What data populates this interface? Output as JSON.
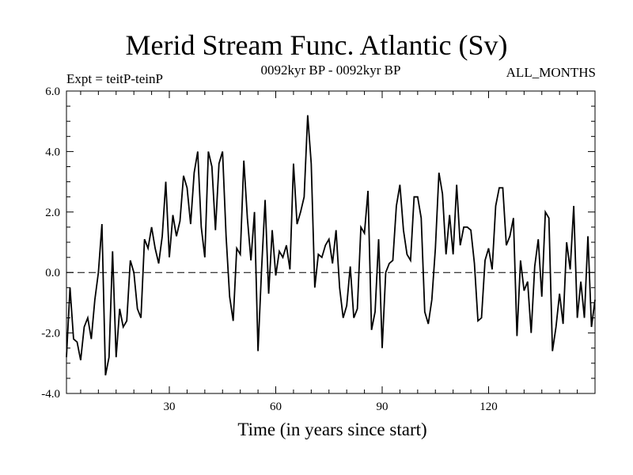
{
  "chart_data": {
    "type": "line",
    "title": "Merid Stream Func. Atlantic (Sv)",
    "subtitle_left": "Expt = teitP-teinP",
    "subtitle_center": "0092kyr BP - 0092kyr BP",
    "subtitle_right": "ALL_MONTHS",
    "xlabel": "Time (in years since start)",
    "ylabel": "",
    "xlim": [
      1,
      150
    ],
    "ylim": [
      -4.0,
      6.0
    ],
    "xticks": [
      30,
      60,
      90,
      120
    ],
    "yticks": [
      -4.0,
      -2.0,
      0.0,
      2.0,
      4.0,
      6.0
    ],
    "ytick_labels": [
      "-4.0",
      "-2.0",
      "0.0",
      "2.0",
      "4.0",
      "6.0"
    ],
    "reference_line": 0.0,
    "x": [
      1,
      2,
      3,
      4,
      5,
      6,
      7,
      8,
      9,
      10,
      11,
      12,
      13,
      14,
      15,
      16,
      17,
      18,
      19,
      20,
      21,
      22,
      23,
      24,
      25,
      26,
      27,
      28,
      29,
      30,
      31,
      32,
      33,
      34,
      35,
      36,
      37,
      38,
      39,
      40,
      41,
      42,
      43,
      44,
      45,
      46,
      47,
      48,
      49,
      50,
      51,
      52,
      53,
      54,
      55,
      56,
      57,
      58,
      59,
      60,
      61,
      62,
      63,
      64,
      65,
      66,
      67,
      68,
      69,
      70,
      71,
      72,
      73,
      74,
      75,
      76,
      77,
      78,
      79,
      80,
      81,
      82,
      83,
      84,
      85,
      86,
      87,
      88,
      89,
      90,
      91,
      92,
      93,
      94,
      95,
      96,
      97,
      98,
      99,
      100,
      101,
      102,
      103,
      104,
      105,
      106,
      107,
      108,
      109,
      110,
      111,
      112,
      113,
      114,
      115,
      116,
      117,
      118,
      119,
      120,
      121,
      122,
      123,
      124,
      125,
      126,
      127,
      128,
      129,
      130,
      131,
      132,
      133,
      134,
      135,
      136,
      137,
      138,
      139,
      140,
      141,
      142,
      143,
      144,
      145,
      146,
      147,
      148,
      149,
      150
    ],
    "series": [
      {
        "name": "teitP-teinP",
        "values": [
          -2.8,
          -0.5,
          -2.2,
          -2.3,
          -2.9,
          -1.8,
          -1.5,
          -2.2,
          -0.9,
          0.0,
          1.6,
          -3.4,
          -2.8,
          0.7,
          -2.8,
          -1.2,
          -1.8,
          -1.6,
          0.4,
          0.0,
          -1.2,
          -1.5,
          1.1,
          0.8,
          1.5,
          0.8,
          0.3,
          1.2,
          3.0,
          0.5,
          1.9,
          1.2,
          1.7,
          3.2,
          2.8,
          1.6,
          3.3,
          4.0,
          1.5,
          0.5,
          4.0,
          3.5,
          1.4,
          3.6,
          4.0,
          1.2,
          -0.8,
          -1.6,
          0.8,
          0.6,
          3.7,
          1.8,
          0.4,
          2.0,
          -2.6,
          0.1,
          2.4,
          -0.7,
          1.4,
          -0.1,
          0.7,
          0.5,
          0.9,
          0.1,
          3.6,
          1.6,
          2.0,
          2.5,
          5.2,
          3.6,
          -0.5,
          0.6,
          0.5,
          0.9,
          1.1,
          0.3,
          1.4,
          -0.5,
          -1.5,
          -1.1,
          0.2,
          -1.5,
          -1.2,
          1.5,
          1.3,
          2.7,
          -1.9,
          -1.3,
          1.1,
          -2.5,
          0.0,
          0.3,
          0.4,
          2.2,
          2.9,
          1.4,
          0.6,
          0.4,
          2.5,
          2.5,
          1.8,
          -1.3,
          -1.7,
          -0.9,
          0.8,
          3.3,
          2.6,
          0.6,
          1.9,
          0.6,
          2.9,
          0.9,
          1.5,
          1.5,
          1.4,
          0.3,
          -1.6,
          -1.5,
          0.4,
          0.8,
          0.1,
          2.2,
          2.8,
          2.8,
          0.9,
          1.2,
          1.8,
          -2.1,
          0.4,
          -0.6,
          -0.3,
          -2.0,
          0.2,
          1.1,
          -0.8,
          2.0,
          1.8,
          -2.6,
          -1.8,
          -0.7,
          -1.7,
          1.0,
          0.1,
          2.2,
          -1.5,
          -0.3,
          -1.5,
          1.2,
          -1.8,
          -0.9
        ]
      }
    ]
  }
}
